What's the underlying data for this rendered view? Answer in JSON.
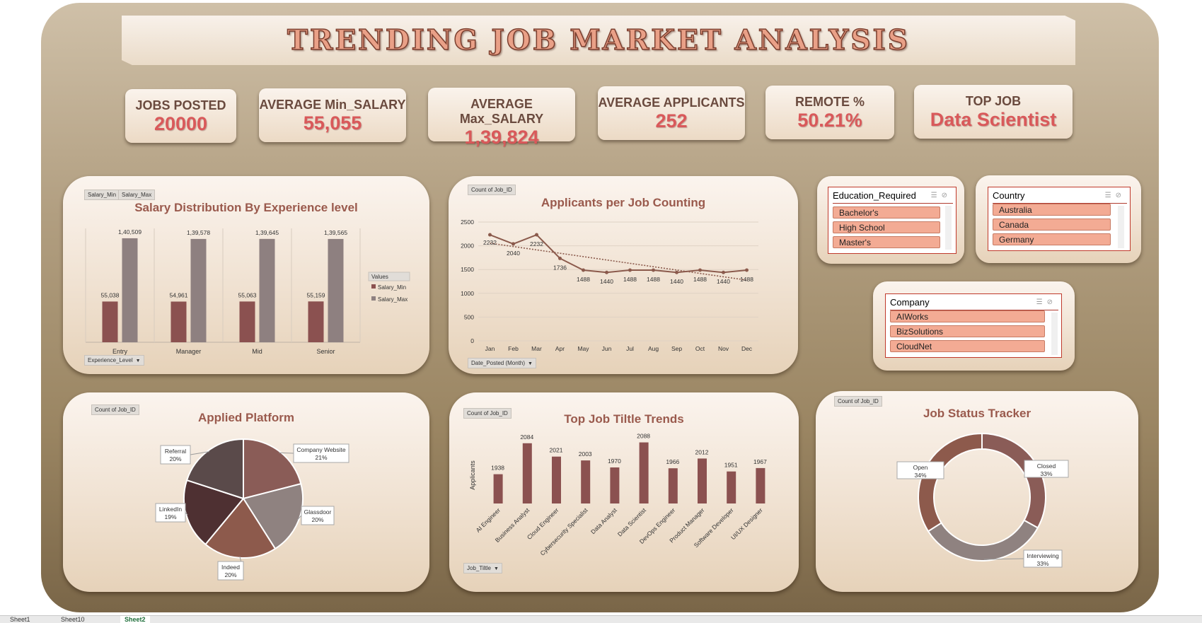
{
  "dashboard": {
    "title": "TRENDING JOB MARKET ANALYSIS"
  },
  "kpis": [
    {
      "label": "JOBS POSTED",
      "value": "20000"
    },
    {
      "label": "AVERAGE Min_SALARY",
      "value": "55,055"
    },
    {
      "label": "AVERAGE Max_SALARY",
      "value": "1,39,824"
    },
    {
      "label": "AVERAGE APPLICANTS",
      "value": "252"
    },
    {
      "label": "REMOTE %",
      "value": "50.21%"
    },
    {
      "label": "TOP JOB",
      "value": "Data Scientist"
    }
  ],
  "salary_panel": {
    "field_buttons": [
      "Salary_Min",
      "Salary_Max"
    ],
    "filter_button": "Experience_Level",
    "legend_title": "Values"
  },
  "applicants_panel": {
    "field_button": "Count of Job_ID",
    "filter_button": "Date_Posted (Month)"
  },
  "platform_panel": {
    "field_button": "Count of Job_ID"
  },
  "titles_panel": {
    "field_button": "Count of Job_ID",
    "filter_button": "Job_Tiltle"
  },
  "status_panel": {
    "field_button": "Count of Job_ID"
  },
  "slicers": {
    "education": {
      "title": "Education_Required",
      "items": [
        "Bachelor's",
        "High School",
        "Master's"
      ]
    },
    "country": {
      "title": "Country",
      "items": [
        "Australia",
        "Canada",
        "Germany"
      ]
    },
    "company": {
      "title": "Company",
      "items": [
        "AIWorks",
        "BizSolutions",
        "CloudNet"
      ]
    }
  },
  "sheet_tabs": [
    "Sheet1",
    "Sheet10",
    "Sheet2"
  ],
  "colors": {
    "salary_min": "#8b5150",
    "salary_max": "#8e8080",
    "line": "#8b5a4c",
    "bar": "#8b5150",
    "kpi_value": "#d9595a"
  },
  "chart_data": [
    {
      "id": "salary",
      "type": "bar",
      "title": "Salary Distribution By Experience level",
      "categories": [
        "Entry",
        "Manager",
        "Mid",
        "Senior"
      ],
      "series": [
        {
          "name": "Salary_Min",
          "values": [
            55038,
            54961,
            55063,
            55159
          ],
          "labels": [
            "55,038",
            "54,961",
            "55,063",
            "55,159"
          ]
        },
        {
          "name": "Salary_Max",
          "values": [
            140509,
            139578,
            139645,
            139565
          ],
          "labels": [
            "1,40,509",
            "1,39,578",
            "1,39,645",
            "1,39,565"
          ]
        }
      ],
      "ylim": [
        0,
        150000
      ],
      "legend": "right"
    },
    {
      "id": "applicants",
      "type": "line",
      "title": "Applicants per Job Counting",
      "categories": [
        "Jan",
        "Feb",
        "Mar",
        "Apr",
        "May",
        "Jun",
        "Jul",
        "Aug",
        "Sep",
        "Oct",
        "Nov",
        "Dec"
      ],
      "values": [
        2232,
        2040,
        2232,
        1736,
        1488,
        1440,
        1488,
        1488,
        1440,
        1488,
        1440,
        1488
      ],
      "y_ticks": [
        0,
        500,
        1000,
        1500,
        2000,
        2500
      ],
      "ylim": [
        0,
        2500
      ],
      "trendline": "dotted",
      "grid": true
    },
    {
      "id": "platform",
      "type": "pie",
      "title": "Applied Platform",
      "slices": [
        {
          "name": "Company Website",
          "value": 21,
          "label": "21%",
          "color": "#8a5c57"
        },
        {
          "name": "Glassdoor",
          "value": 20,
          "label": "20%",
          "color": "#8f8280"
        },
        {
          "name": "Indeed",
          "value": 20,
          "label": "20%",
          "color": "#8d5a4c"
        },
        {
          "name": "LinkedIn",
          "value": 19,
          "label": "19%",
          "color": "#4e3032"
        },
        {
          "name": "Referral",
          "value": 20,
          "label": "20%",
          "color": "#5a4a4a"
        }
      ]
    },
    {
      "id": "titles",
      "type": "bar",
      "title": "Top Job Tiltle Trends",
      "ylabel": "Applicants",
      "categories": [
        "AI Engineer",
        "Business Analyst",
        "Cloud Engineer",
        "Cybersecurity Specialist",
        "Data Analyst",
        "Data Scientist",
        "DevOps Engineer",
        "Product Manager",
        "Software Developer",
        "UI/UX Designer"
      ],
      "values": [
        1938,
        2084,
        2021,
        2003,
        1970,
        2088,
        1966,
        2012,
        1951,
        1967
      ],
      "ylim": [
        1800,
        2100
      ]
    },
    {
      "id": "status",
      "type": "pie",
      "title": "Job Status Tracker",
      "slices": [
        {
          "name": "Closed",
          "value": 33,
          "label": "33%",
          "color": "#8a5c57"
        },
        {
          "name": "Interviewing",
          "value": 33,
          "label": "33%",
          "color": "#8f8280"
        },
        {
          "name": "Open",
          "value": 34,
          "label": "34%",
          "color": "#8d5a4c"
        }
      ]
    }
  ]
}
